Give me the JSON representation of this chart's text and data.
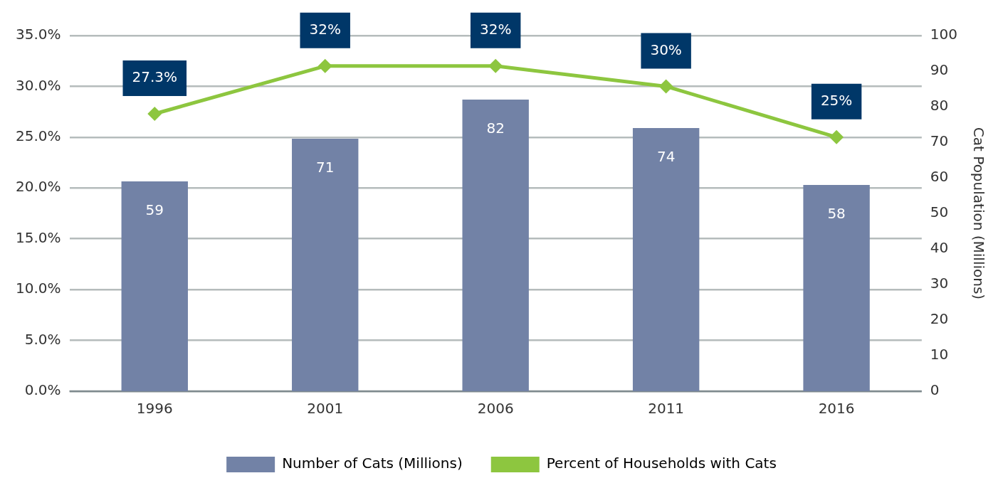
{
  "chart_data": {
    "type": "bar",
    "categories": [
      "1996",
      "2001",
      "2006",
      "2011",
      "2016"
    ],
    "series": [
      {
        "name": "Number of Cats (Millions)",
        "axis": "y2",
        "color": "#7282a6",
        "values": [
          59,
          71,
          82,
          74,
          58
        ],
        "value_labels": [
          "59",
          "71",
          "82",
          "74",
          "58"
        ]
      },
      {
        "name": "Percent of Households with Cats",
        "type": "line",
        "color": "#8dc63f",
        "values": [
          27.3,
          32,
          32,
          30,
          25
        ],
        "value_labels": [
          "27.3%",
          "32%",
          "32%",
          "30%",
          "25%"
        ]
      }
    ],
    "ylim": [
      0,
      35
    ],
    "yticks": [
      {
        "value": 0,
        "label": "0.0%"
      },
      {
        "value": 5,
        "label": "5.0%"
      },
      {
        "value": 10,
        "label": "10.0%"
      },
      {
        "value": 15,
        "label": "15.0%"
      },
      {
        "value": 20,
        "label": "20.0%"
      },
      {
        "value": 25,
        "label": "25.0%"
      },
      {
        "value": 30,
        "label": "30.0%"
      },
      {
        "value": 35,
        "label": "35.0%"
      }
    ],
    "y2lim": [
      0,
      100
    ],
    "y2ticks": [
      0,
      10,
      20,
      30,
      40,
      50,
      60,
      70,
      80,
      90,
      100
    ],
    "y2label": "Cat Population (Millions)",
    "grid": "y",
    "legend": "bottom",
    "marker": "diamond",
    "line_style": "solid"
  }
}
